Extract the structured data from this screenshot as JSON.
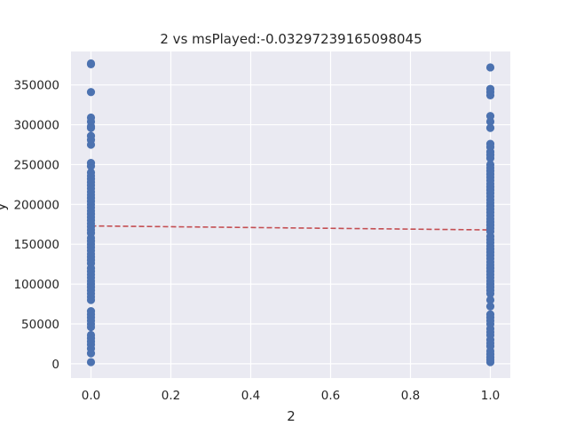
{
  "chart_data": {
    "type": "scatter",
    "title": "2 vs msPlayed:-0.03297239165098045",
    "xlabel": "2",
    "ylabel": "y",
    "xlim": [
      -0.05,
      1.05
    ],
    "ylim": [
      -18000,
      392000
    ],
    "grid": true,
    "x_ticks": [
      0.0,
      0.2,
      0.4,
      0.6,
      0.8,
      1.0
    ],
    "x_tick_labels": [
      "0.0",
      "0.2",
      "0.4",
      "0.6",
      "0.8",
      "1.0"
    ],
    "y_ticks": [
      0,
      50000,
      100000,
      150000,
      200000,
      250000,
      300000,
      350000
    ],
    "y_tick_labels": [
      "0",
      "50000",
      "100000",
      "150000",
      "200000",
      "250000",
      "300000",
      "350000"
    ],
    "colors": {
      "points": "#4c72b0",
      "trend": "#c44e52",
      "background": "#eaeaf2",
      "grid": "#ffffff"
    },
    "series": [
      {
        "x": 0,
        "y": [
          377000,
          376000,
          341000,
          309000,
          304000,
          298000,
          296000,
          286000,
          281000,
          275000,
          252000,
          248000,
          240000,
          236000,
          232000,
          228000,
          224000,
          220000,
          216000,
          212000,
          208000,
          204000,
          200000,
          196000,
          192000,
          188000,
          184000,
          180000,
          176000,
          172000,
          168000,
          164000,
          158000,
          154000,
          150000,
          146000,
          142000,
          138000,
          134000,
          130000,
          126000,
          120000,
          116000,
          112000,
          108000,
          104000,
          100000,
          96000,
          92000,
          88000,
          84000,
          80000,
          66000,
          62000,
          58000,
          54000,
          50000,
          46000,
          36000,
          32000,
          28000,
          24000,
          19000,
          13000,
          2000
        ]
      },
      {
        "x": 1,
        "y": [
          372000,
          345000,
          341000,
          337000,
          311000,
          304000,
          296000,
          276000,
          272000,
          266000,
          262000,
          258000,
          250000,
          246000,
          242000,
          238000,
          234000,
          230000,
          226000,
          222000,
          218000,
          214000,
          210000,
          206000,
          202000,
          198000,
          194000,
          190000,
          186000,
          182000,
          178000,
          174000,
          170000,
          166000,
          160000,
          156000,
          152000,
          148000,
          144000,
          140000,
          136000,
          132000,
          128000,
          124000,
          120000,
          116000,
          112000,
          108000,
          104000,
          100000,
          96000,
          92000,
          88000,
          80000,
          72000,
          62000,
          58000,
          54000,
          50000,
          44000,
          40000,
          36000,
          30000,
          26000,
          22000,
          16000,
          12000,
          8000,
          5000,
          2000
        ]
      }
    ],
    "trend_line": {
      "x": [
        0,
        1
      ],
      "y": [
        173000,
        168000
      ]
    }
  }
}
